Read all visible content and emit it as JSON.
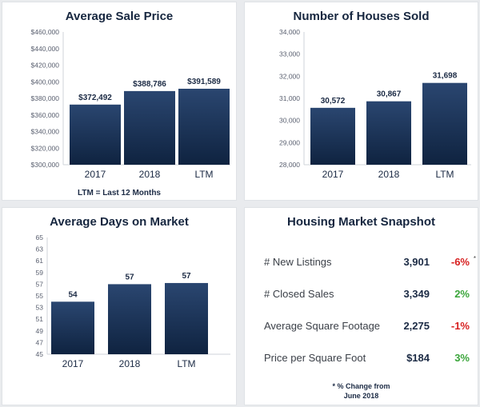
{
  "chart_data": [
    {
      "type": "bar",
      "title": "Average Sale Price",
      "categories": [
        "2017",
        "2018",
        "LTM"
      ],
      "values": [
        372492,
        388786,
        391589
      ],
      "value_labels": [
        "$372,492",
        "$388,786",
        "$391,589"
      ],
      "ylim": [
        300000,
        460000
      ],
      "yticks": [
        "$300,000",
        "$320,000",
        "$340,000",
        "$360,000",
        "$380,000",
        "$400,000",
        "$420,000",
        "$440,000",
        "$460,000"
      ],
      "note": "LTM = Last 12 Months",
      "grid": false
    },
    {
      "type": "bar",
      "title": "Number of Houses Sold",
      "categories": [
        "2017",
        "2018",
        "LTM"
      ],
      "values": [
        30572,
        30867,
        31698
      ],
      "value_labels": [
        "30,572",
        "30,867",
        "31,698"
      ],
      "ylim": [
        28000,
        34000
      ],
      "yticks": [
        "28,000",
        "29,000",
        "30,000",
        "31,000",
        "32,000",
        "33,000",
        "34,000"
      ],
      "grid": false
    },
    {
      "type": "bar",
      "title": "Average Days on Market",
      "categories": [
        "2017",
        "2018",
        "LTM"
      ],
      "values": [
        54,
        57,
        57.2
      ],
      "value_labels": [
        "54",
        "57",
        "57"
      ],
      "ylim": [
        45,
        65
      ],
      "yticks": [
        "45",
        "47",
        "49",
        "51",
        "53",
        "55",
        "57",
        "59",
        "61",
        "63",
        "65"
      ],
      "grid": false
    }
  ],
  "snapshot": {
    "title": "Housing Market Snapshot",
    "rows": [
      {
        "label": "# New Listings",
        "value": "3,901",
        "change": "-6%"
      },
      {
        "label": "# Closed Sales",
        "value": "3,349",
        "change": "2%"
      },
      {
        "label": "Average Square Footage",
        "value": "2,275",
        "change": "-1%"
      },
      {
        "label": "Price per Square Foot",
        "value": "$184",
        "change": "3%"
      }
    ],
    "star": "*",
    "footnote_line1": "* % Change from",
    "footnote_line2": "June 2018"
  },
  "colors": {
    "bar_top": "#2a4670",
    "bar_bottom": "#0f2340",
    "negative": "#d71f1f",
    "positive": "#3aa53a"
  }
}
